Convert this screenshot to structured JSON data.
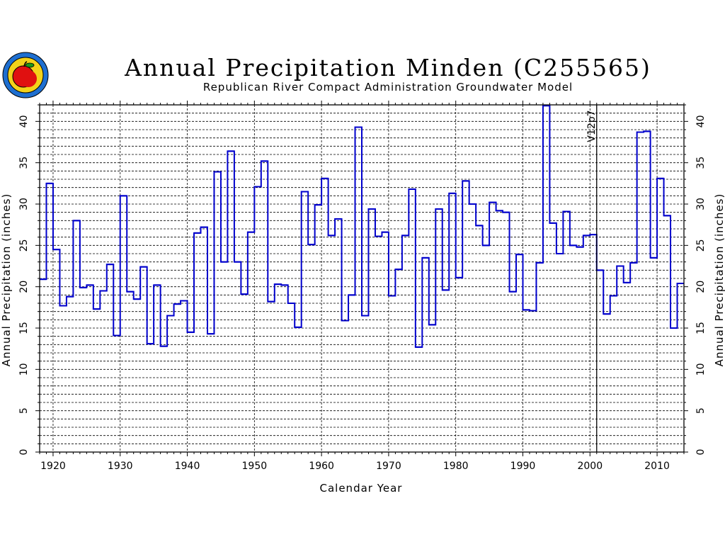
{
  "chart_data": {
    "type": "line",
    "step": true,
    "title": "Annual Precipitation Minden (C255565)",
    "subtitle": "Republican River Compact Administration Groundwater Model",
    "xlabel": "Calendar Year",
    "ylabel": "Annual Precipitation (inches)",
    "ylabel_right": "Annual Precipitation (inches)",
    "xlim": [
      1918,
      2014
    ],
    "ylim": [
      0,
      42
    ],
    "xticks": [
      1920,
      1930,
      1940,
      1950,
      1960,
      1970,
      1980,
      1990,
      2000,
      2010
    ],
    "yticks": [
      0,
      5,
      10,
      15,
      20,
      25,
      30,
      35,
      40
    ],
    "grid": true,
    "series_color": "#0000cc",
    "annotation": {
      "x": 2001,
      "label": "V12p7"
    },
    "x": [
      1918,
      1919,
      1920,
      1921,
      1922,
      1923,
      1924,
      1925,
      1926,
      1927,
      1928,
      1929,
      1930,
      1931,
      1932,
      1933,
      1934,
      1935,
      1936,
      1937,
      1938,
      1939,
      1940,
      1941,
      1942,
      1943,
      1944,
      1945,
      1946,
      1947,
      1948,
      1949,
      1950,
      1951,
      1952,
      1953,
      1954,
      1955,
      1956,
      1957,
      1958,
      1959,
      1960,
      1961,
      1962,
      1963,
      1964,
      1965,
      1966,
      1967,
      1968,
      1969,
      1970,
      1971,
      1972,
      1973,
      1974,
      1975,
      1976,
      1977,
      1978,
      1979,
      1980,
      1981,
      1982,
      1983,
      1984,
      1985,
      1986,
      1987,
      1988,
      1989,
      1990,
      1991,
      1992,
      1993,
      1994,
      1995,
      1996,
      1997,
      1998,
      1999,
      2000,
      2001,
      2002,
      2003,
      2004,
      2005,
      2006,
      2007,
      2008,
      2009,
      2010,
      2011,
      2012,
      2013
    ],
    "values": [
      20.9,
      32.5,
      24.5,
      17.7,
      18.8,
      28.0,
      19.9,
      20.2,
      17.3,
      19.5,
      22.7,
      14.1,
      31.0,
      19.4,
      18.5,
      22.4,
      13.1,
      20.2,
      12.8,
      16.5,
      17.9,
      18.3,
      14.5,
      26.5,
      27.2,
      14.3,
      33.9,
      23.0,
      36.4,
      23.0,
      19.1,
      26.6,
      32.1,
      35.2,
      18.2,
      20.3,
      20.2,
      18.0,
      15.1,
      31.5,
      25.1,
      29.9,
      33.1,
      26.2,
      28.2,
      15.9,
      19.0,
      39.3,
      16.5,
      29.4,
      26.1,
      26.6,
      18.9,
      22.1,
      26.2,
      31.8,
      12.7,
      23.5,
      15.4,
      29.4,
      19.6,
      31.3,
      21.1,
      32.8,
      30.0,
      27.4,
      25.0,
      30.2,
      29.2,
      29.0,
      19.4,
      23.9,
      17.2,
      17.1,
      22.9,
      41.9,
      27.7,
      24.0,
      29.1,
      25.0,
      24.8,
      26.2,
      26.3,
      22.0,
      16.7,
      18.9,
      22.5,
      20.5,
      22.9,
      38.7,
      38.8,
      23.5,
      33.1,
      28.6,
      15.0,
      20.4
    ],
    "source_note": "(C255565)"
  },
  "logo": {
    "name": "kansas-seal-icon"
  }
}
